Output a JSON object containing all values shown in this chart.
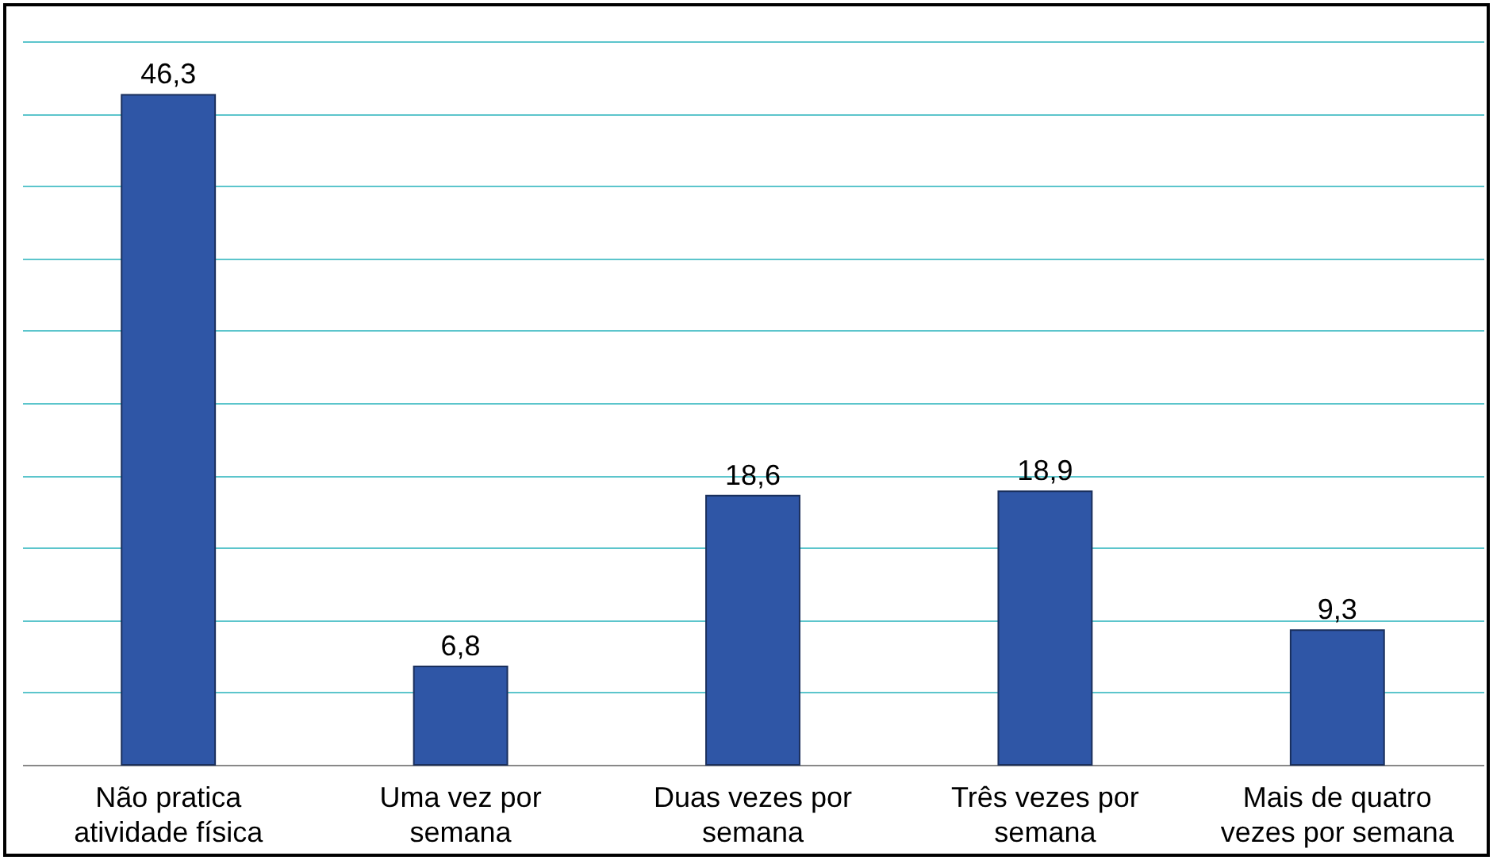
{
  "chart_data": {
    "type": "bar",
    "categories": [
      "Não pratica atividade física",
      "Uma vez por semana",
      "Duas vezes por semana",
      "Três vezes por semana",
      "Mais de quatro vezes por semana"
    ],
    "values": [
      46.3,
      6.8,
      18.6,
      18.9,
      9.3
    ],
    "color": "#2f56a6",
    "ylim": [
      0,
      50
    ],
    "yticks": [
      {
        "value": 0,
        "label": null
      },
      {
        "value": 5,
        "label": null
      },
      {
        "value": 10,
        "label": null
      },
      {
        "value": 15,
        "label": null
      },
      {
        "value": 20,
        "label": null
      },
      {
        "value": 25,
        "label": null
      },
      {
        "value": 30,
        "label": null
      },
      {
        "value": 35,
        "label": null
      },
      {
        "value": 40,
        "label": null
      },
      {
        "value": 45,
        "label": null
      },
      {
        "value": 50,
        "label": null
      }
    ],
    "grid": "y",
    "tick_labels": "x",
    "data_labels": true,
    "value_labels": [
      "46,3",
      "6,8",
      "18,6",
      "18,9",
      "9,3"
    ]
  }
}
